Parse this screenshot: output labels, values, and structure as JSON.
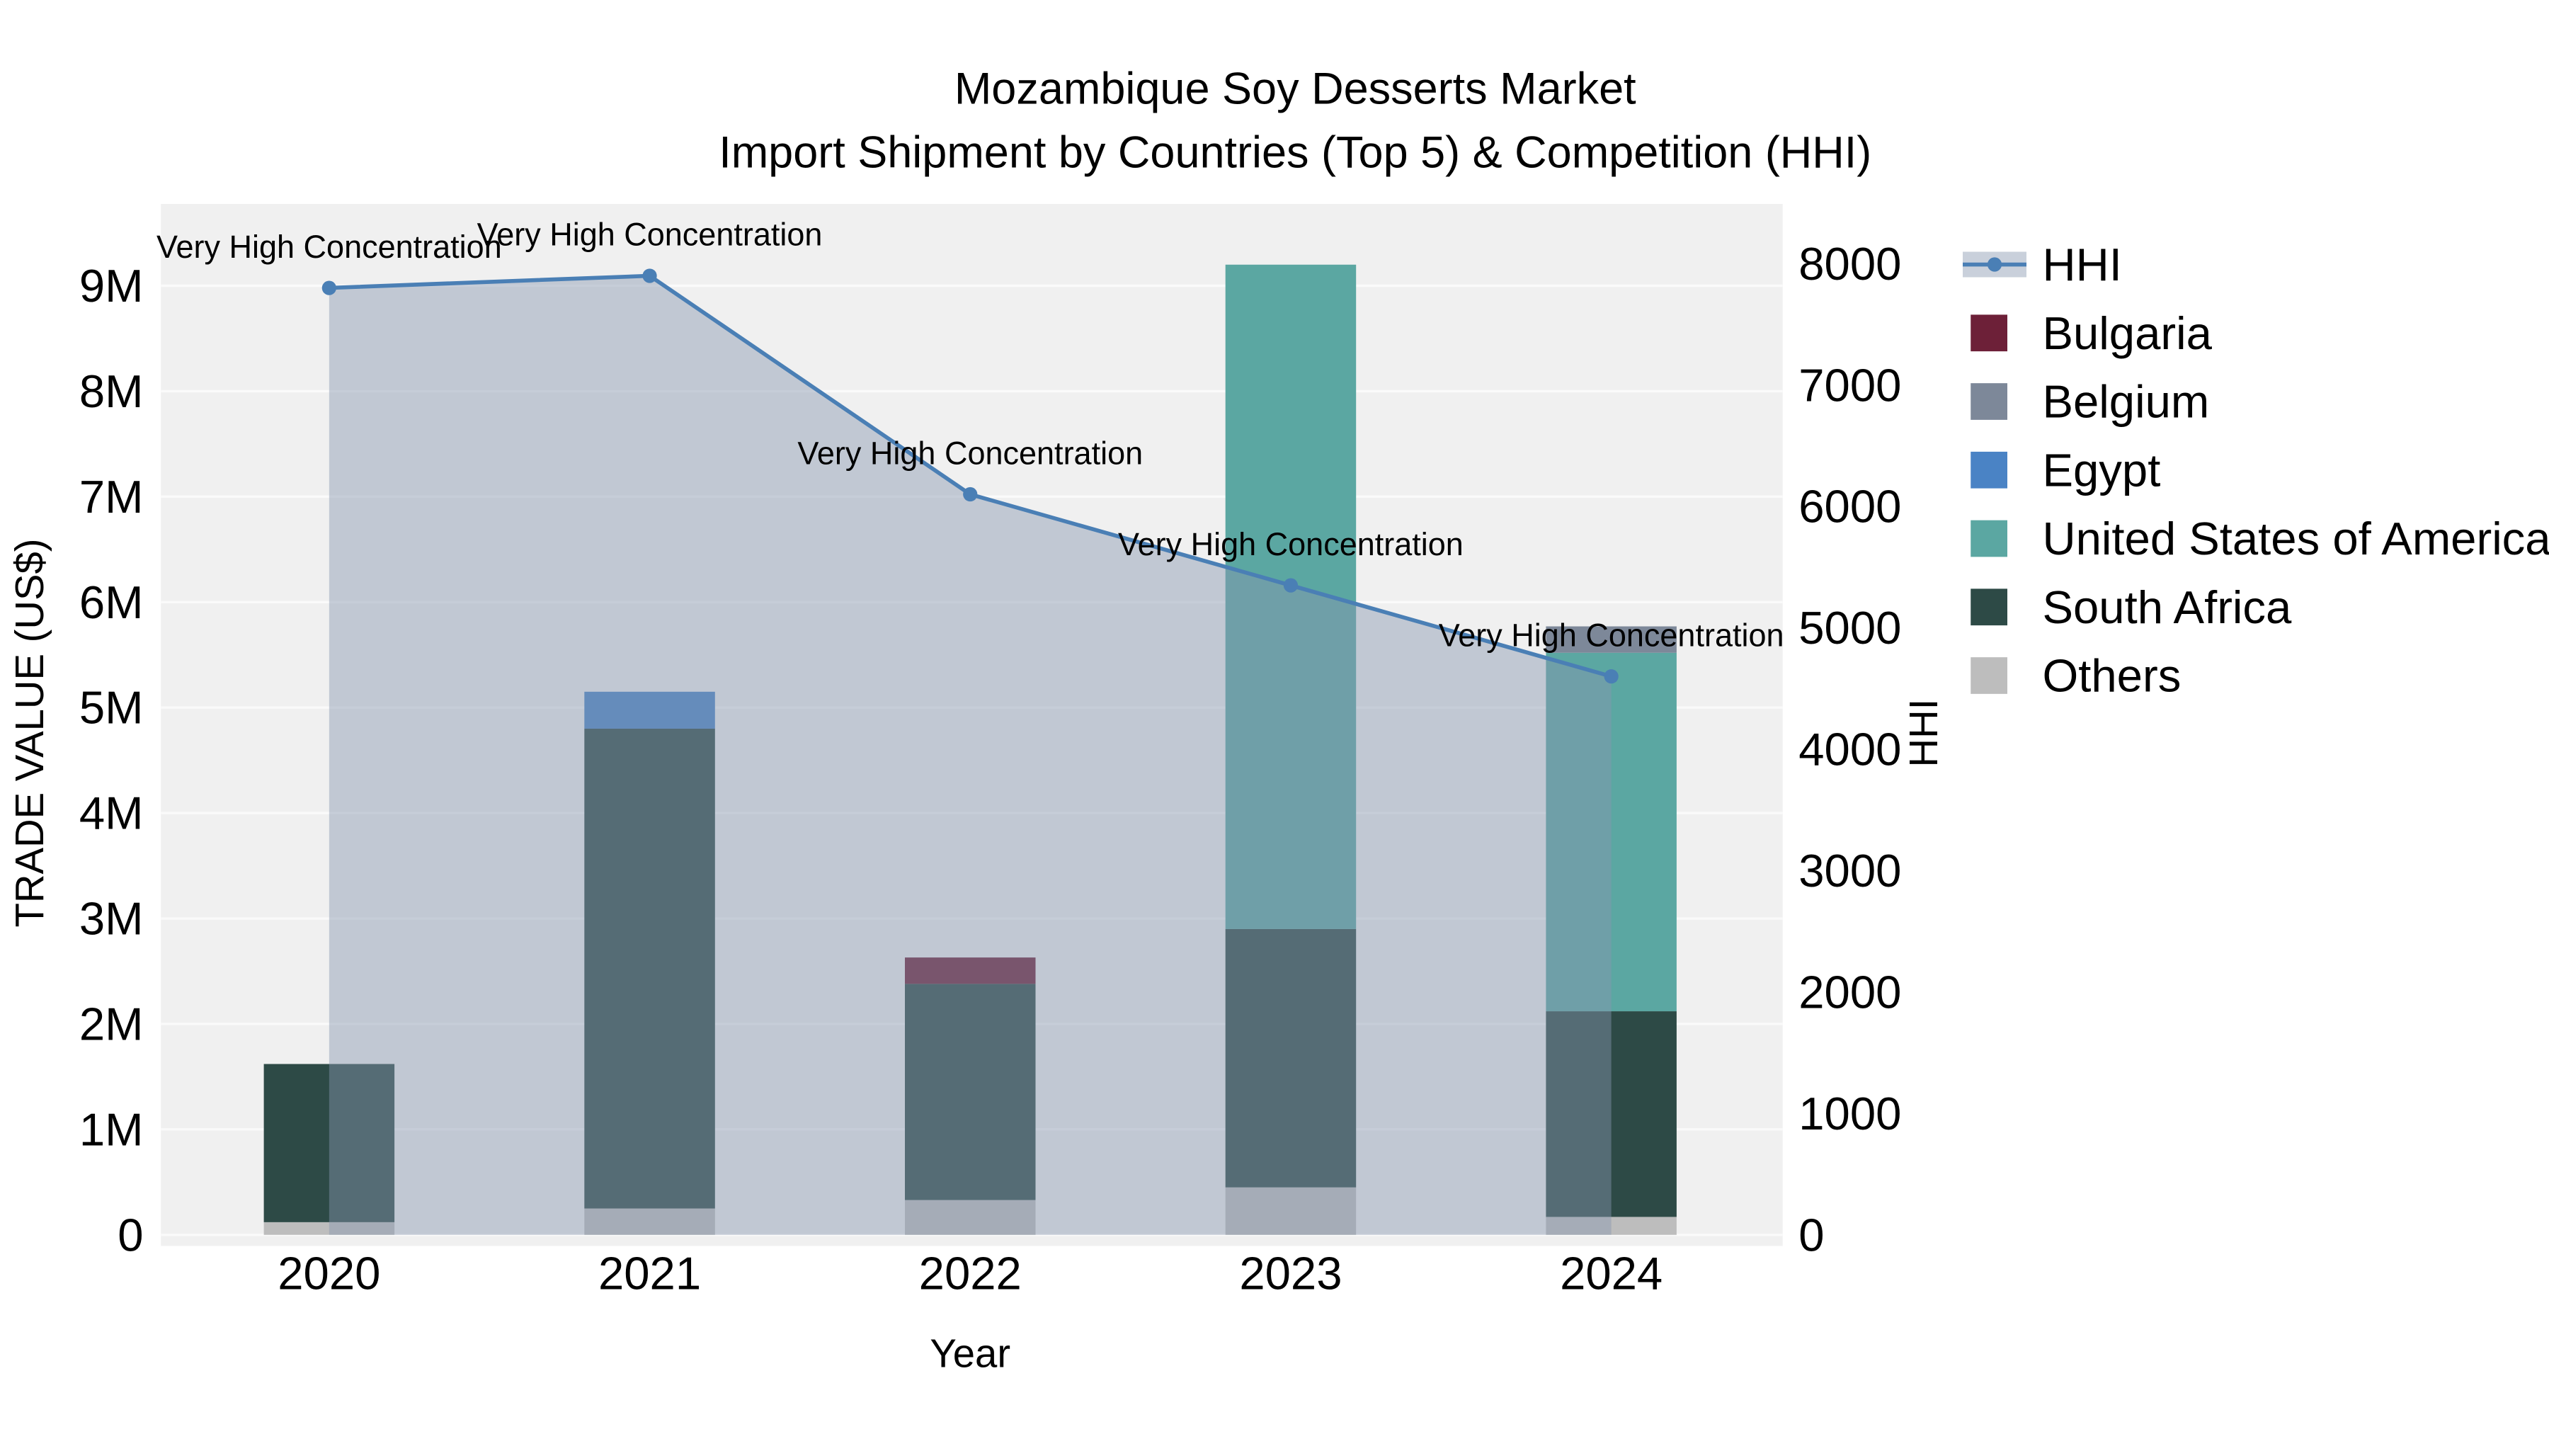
{
  "title": {
    "line1": "Mozambique Soy Desserts Market",
    "line2": "Import Shipment by Countries (Top 5) & Competition (HHI)"
  },
  "chart_data": {
    "type": "combo-stacked-bar-line",
    "x": [
      "2020",
      "2021",
      "2022",
      "2023",
      "2024"
    ],
    "xlabel": "Year",
    "ylabel_left": "TRADE VALUE (US$)",
    "ylabel_right": "HHI",
    "plot_bg": "#f0f0f0",
    "grid_color": "#fafafa",
    "y_left_ticks": {
      "labels": [
        "0",
        "1M",
        "2M",
        "3M",
        "4M",
        "5M",
        "6M",
        "7M",
        "8M",
        "9M"
      ],
      "values": [
        0,
        1000000,
        2000000,
        3000000,
        4000000,
        5000000,
        6000000,
        7000000,
        8000000,
        9000000
      ]
    },
    "y_left_max": 9670000,
    "y_right_ticks": {
      "labels": [
        "0",
        "1000",
        "2000",
        "3000",
        "4000",
        "5000",
        "6000",
        "7000",
        "8000"
      ],
      "values": [
        0,
        1000,
        2000,
        3000,
        4000,
        5000,
        6000,
        7000,
        8000
      ]
    },
    "y_right_max": 8400,
    "bar_series": [
      {
        "name": "Others",
        "color": "#bdbdbd",
        "values": [
          120000,
          250000,
          330000,
          450000,
          170000
        ]
      },
      {
        "name": "South Africa",
        "color": "#2d4a46",
        "values": [
          1500000,
          4550000,
          2050000,
          2450000,
          1950000
        ]
      },
      {
        "name": "United States of America",
        "color": "#5ba7a2",
        "values": [
          0,
          0,
          0,
          6300000,
          3400000
        ]
      },
      {
        "name": "Egypt",
        "color": "#4a83c5",
        "values": [
          0,
          350000,
          0,
          0,
          0
        ]
      },
      {
        "name": "Belgium",
        "color": "#7d8899",
        "values": [
          0,
          0,
          0,
          0,
          250000
        ]
      },
      {
        "name": "Bulgaria",
        "color": "#6d2038",
        "values": [
          0,
          0,
          250000,
          0,
          0
        ]
      }
    ],
    "line_series": {
      "name": "HHI",
      "color": "#4a7fb5",
      "area_fill": "rgba(135,150,175,0.45)",
      "values": [
        7800,
        7900,
        6100,
        5350,
        4600
      ]
    },
    "point_annotations": [
      "Very High Concentration",
      "Very High Concentration",
      "Very High Concentration",
      "Very High Concentration",
      "Very High Concentration"
    ],
    "legend": {
      "order": [
        "HHI",
        "Bulgaria",
        "Belgium",
        "Egypt",
        "United States of America",
        "South Africa",
        "Others"
      ]
    }
  }
}
